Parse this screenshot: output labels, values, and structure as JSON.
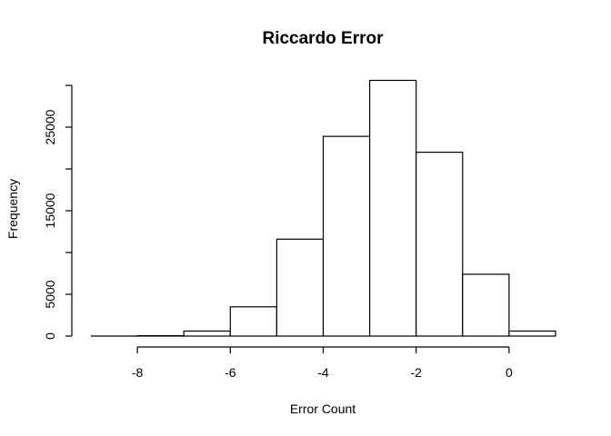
{
  "chart_data": {
    "type": "histogram",
    "title": "Riccardo Error",
    "xlabel": "Error Count",
    "ylabel": "Frequency",
    "bins": [
      {
        "x0": -9,
        "x1": -8,
        "count": 0
      },
      {
        "x0": -8,
        "x1": -7,
        "count": 50
      },
      {
        "x0": -7,
        "x1": -6,
        "count": 600
      },
      {
        "x0": -6,
        "x1": -5,
        "count": 3500
      },
      {
        "x0": -5,
        "x1": -4,
        "count": 11600
      },
      {
        "x0": -4,
        "x1": -3,
        "count": 23900
      },
      {
        "x0": -3,
        "x1": -2,
        "count": 30600
      },
      {
        "x0": -2,
        "x1": -1,
        "count": 22000
      },
      {
        "x0": -1,
        "x1": 0,
        "count": 7400
      },
      {
        "x0": 0,
        "x1": 1,
        "count": 600
      }
    ],
    "xlim": [
      -9,
      1
    ],
    "ylim": [
      0,
      30000
    ],
    "x_ticks": [
      -8,
      -6,
      -4,
      -2,
      0
    ],
    "y_ticks": [
      0,
      5000,
      15000,
      25000
    ],
    "y_tick_marks": [
      0,
      5000,
      10000,
      15000,
      20000,
      25000,
      30000
    ],
    "grid": false,
    "colors": {
      "bar_fill": "#ffffff",
      "bar_stroke": "#000000"
    }
  }
}
